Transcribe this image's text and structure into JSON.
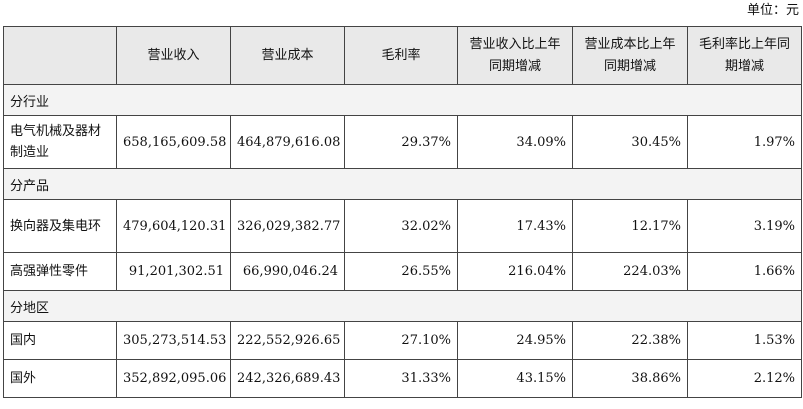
{
  "unit_label": "单位：元",
  "headers": [
    "",
    "营业收入",
    "营业成本",
    "毛利率",
    "营业收入比上年同期增减",
    "营业成本比上年同期增减",
    "毛利率比上年同期增减"
  ],
  "sections": [
    {
      "title": "分行业",
      "rows": [
        {
          "name": "电气机械及器材制造业",
          "values": [
            "658,165,609.58",
            "464,879,616.08",
            "29.37%",
            "34.09%",
            "30.45%",
            "1.97%"
          ]
        }
      ]
    },
    {
      "title": "分产品",
      "rows": [
        {
          "name": "换向器及集电环",
          "values": [
            "479,604,120.31",
            "326,029,382.77",
            "32.02%",
            "17.43%",
            "12.17%",
            "3.19%"
          ]
        },
        {
          "name": "高强弹性零件",
          "values": [
            "91,201,302.51",
            "66,990,046.24",
            "26.55%",
            "216.04%",
            "224.03%",
            "1.66%"
          ]
        }
      ]
    },
    {
      "title": "分地区",
      "rows": [
        {
          "name": "国内",
          "values": [
            "305,273,514.53",
            "222,552,926.65",
            "27.10%",
            "24.95%",
            "22.38%",
            "1.53%"
          ]
        },
        {
          "name": "国外",
          "values": [
            "352,892,095.06",
            "242,326,689.43",
            "31.33%",
            "43.15%",
            "38.86%",
            "2.12%"
          ]
        }
      ]
    }
  ]
}
